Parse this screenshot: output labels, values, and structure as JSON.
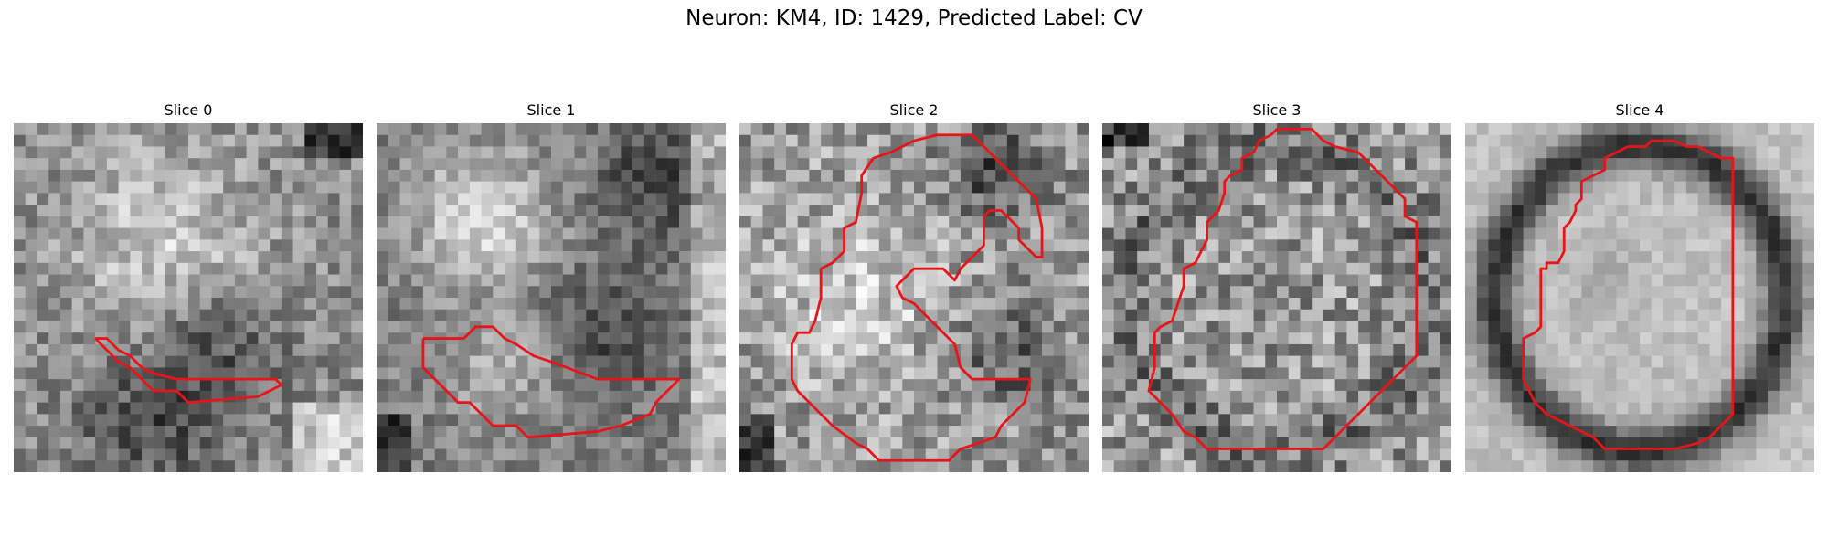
{
  "figure": {
    "title": "Neuron: KM4, ID: 1429, Predicted Label: CV"
  },
  "slices": [
    {
      "title": "Slice 0"
    },
    {
      "title": "Slice 1"
    },
    {
      "title": "Slice 2"
    },
    {
      "title": "Slice 3"
    },
    {
      "title": "Slice 4"
    }
  ],
  "colors": {
    "contour": "#e8141a",
    "colormap": "grayscale"
  }
}
